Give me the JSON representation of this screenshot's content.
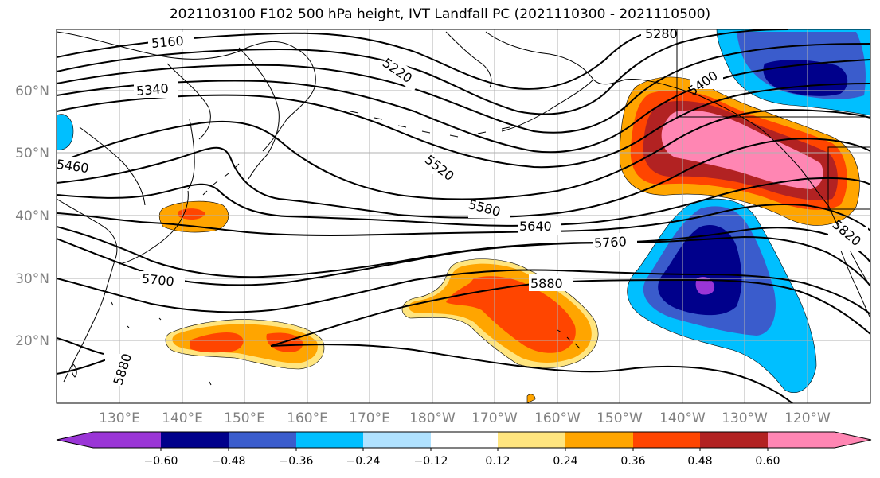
{
  "title": "2021103100 F102 500 hPa height, IVT Landfall PC (2021110300 - 2021110500)",
  "map": {
    "lon_labels": [
      "130°E",
      "140°E",
      "150°E",
      "160°E",
      "170°E",
      "180°W",
      "170°W",
      "160°W",
      "150°W",
      "140°W",
      "130°W",
      "120°W"
    ],
    "lat_labels": [
      "60°N",
      "50°N",
      "40°N",
      "30°N",
      "20°N"
    ],
    "contour_labels": [
      "5160",
      "5220",
      "5280",
      "5340",
      "5460",
      "5400",
      "5520",
      "5580",
      "5640",
      "5760",
      "5700",
      "5880",
      "5880",
      "5820"
    ],
    "grid": true
  },
  "colorbar": {
    "ticks": [
      "−0.60",
      "−0.48",
      "−0.36",
      "−0.24",
      "−0.12",
      "0.12",
      "0.24",
      "0.36",
      "0.48",
      "0.60"
    ],
    "colors": [
      "#9a35d6",
      "#00008b",
      "#3a5ccc",
      "#00bfff",
      "#b0e2ff",
      "#ffffff",
      "#ffe57f",
      "#ffa500",
      "#ff4500",
      "#b22222",
      "#ff86b3"
    ]
  }
}
